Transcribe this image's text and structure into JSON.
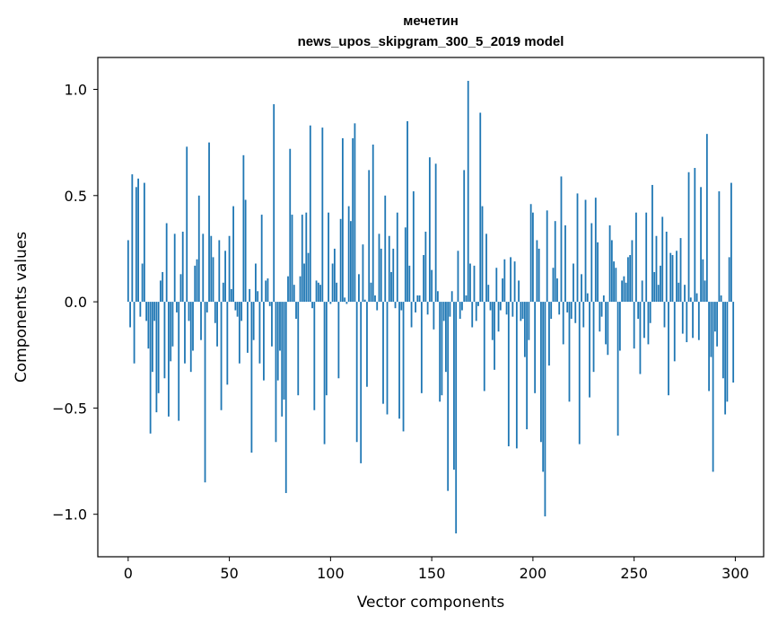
{
  "chart_data": {
    "type": "bar",
    "title_line1": "мечетин",
    "title_line2": "news_upos_skipgram_300_5_2019 model",
    "xlabel": "Vector components",
    "ylabel": "Components values",
    "xlim": [
      -15,
      314
    ],
    "ylim": [
      -1.2,
      1.15
    ],
    "xticks": [
      0,
      50,
      100,
      150,
      200,
      250,
      300
    ],
    "xtick_labels": [
      "0",
      "50",
      "100",
      "150",
      "200",
      "250",
      "300"
    ],
    "yticks": [
      1.0,
      0.5,
      0.0,
      -0.5,
      -1.0
    ],
    "ytick_labels": [
      "1.0",
      "0.5",
      "0.0",
      "−0.5",
      "−1.0"
    ],
    "bar_color": "#1f77b4",
    "x": "0..299 (component index)",
    "values": [
      0.29,
      -0.12,
      0.6,
      -0.29,
      0.54,
      0.58,
      -0.07,
      0.18,
      0.56,
      -0.09,
      -0.22,
      -0.62,
      -0.33,
      -0.09,
      -0.52,
      -0.43,
      0.1,
      0.14,
      -0.36,
      0.37,
      -0.54,
      -0.28,
      -0.21,
      0.32,
      -0.05,
      -0.56,
      0.13,
      0.33,
      -0.29,
      0.73,
      -0.09,
      -0.33,
      -0.23,
      0.17,
      0.2,
      0.5,
      -0.18,
      0.32,
      -0.85,
      -0.05,
      0.75,
      0.31,
      0.21,
      -0.1,
      -0.21,
      0.29,
      -0.51,
      0.09,
      0.24,
      -0.39,
      0.31,
      0.06,
      0.45,
      -0.04,
      -0.07,
      -0.29,
      -0.09,
      0.69,
      0.48,
      -0.24,
      0.06,
      -0.71,
      -0.18,
      0.18,
      0.05,
      -0.29,
      0.41,
      -0.37,
      0.1,
      0.11,
      -0.02,
      -0.21,
      0.93,
      -0.66,
      -0.37,
      -0.23,
      -0.54,
      -0.46,
      -0.9,
      0.12,
      0.72,
      0.41,
      0.08,
      -0.08,
      -0.44,
      0.12,
      0.41,
      0.18,
      0.42,
      0.23,
      0.83,
      -0.03,
      -0.51,
      0.1,
      0.09,
      0.08,
      0.82,
      -0.67,
      -0.44,
      0.42,
      -0.01,
      0.18,
      0.25,
      0.09,
      -0.36,
      0.39,
      0.77,
      0.02,
      -0.01,
      0.45,
      0.38,
      0.77,
      0.84,
      -0.66,
      0.13,
      -0.76,
      0.27,
      0.01,
      -0.4,
      0.62,
      0.09,
      0.74,
      0.03,
      -0.04,
      0.32,
      0.25,
      -0.48,
      0.5,
      -0.53,
      0.31,
      0.14,
      0.25,
      -0.03,
      0.42,
      -0.55,
      -0.04,
      -0.61,
      0.35,
      0.85,
      0.17,
      -0.12,
      0.52,
      -0.05,
      0.03,
      0.03,
      -0.43,
      0.22,
      0.33,
      -0.06,
      0.68,
      0.15,
      -0.13,
      0.65,
      0.05,
      -0.47,
      -0.44,
      -0.09,
      -0.33,
      -0.89,
      -0.07,
      0.05,
      -0.79,
      -1.09,
      0.24,
      -0.08,
      -0.04,
      0.62,
      0.03,
      1.04,
      0.18,
      -0.12,
      0.17,
      -0.09,
      -0.02,
      0.89,
      0.45,
      -0.42,
      0.32,
      0.08,
      -0.04,
      -0.18,
      -0.32,
      0.16,
      -0.14,
      -0.04,
      0.11,
      0.2,
      -0.06,
      -0.68,
      0.21,
      -0.07,
      0.19,
      -0.69,
      0.1,
      -0.09,
      -0.08,
      -0.26,
      -0.6,
      -0.18,
      0.46,
      0.42,
      -0.43,
      0.29,
      0.25,
      -0.66,
      -0.8,
      -1.01,
      0.43,
      -0.3,
      -0.08,
      0.16,
      0.38,
      0.11,
      -0.06,
      0.59,
      -0.2,
      0.36,
      -0.05,
      -0.47,
      -0.08,
      0.18,
      -0.1,
      0.51,
      -0.67,
      0.13,
      -0.12,
      0.48,
      0.04,
      -0.45,
      0.37,
      -0.33,
      0.49,
      0.28,
      -0.14,
      -0.07,
      0.03,
      -0.2,
      -0.25,
      0.36,
      0.29,
      0.19,
      0.16,
      -0.63,
      -0.23,
      0.1,
      0.12,
      0.09,
      0.21,
      0.22,
      0.29,
      -0.22,
      0.42,
      -0.08,
      -0.34,
      0.1,
      -0.17,
      0.42,
      -0.2,
      -0.1,
      0.55,
      0.14,
      0.31,
      0.08,
      0.17,
      0.4,
      -0.12,
      0.33,
      -0.44,
      0.23,
      0.22,
      -0.28,
      0.24,
      0.09,
      0.3,
      -0.15,
      0.08,
      -0.19,
      0.61,
      0.02,
      -0.17,
      0.63,
      0.04,
      -0.18,
      0.54,
      0.2,
      0.1,
      0.79,
      -0.42,
      -0.26,
      -0.8,
      -0.14,
      -0.21,
      0.52,
      0.03,
      -0.36,
      -0.53,
      -0.47,
      0.21,
      0.56,
      -0.38
    ]
  }
}
